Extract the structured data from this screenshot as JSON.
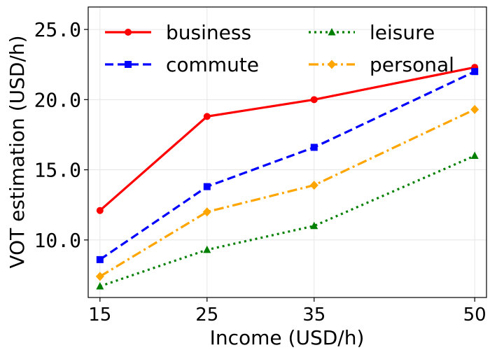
{
  "chart_data": {
    "type": "line",
    "xlabel": "Income (USD/h)",
    "ylabel": "VOT estimation (USD/h)",
    "x": [
      15,
      25,
      35,
      50
    ],
    "x_tick_labels": [
      "15",
      "25",
      "35",
      "50"
    ],
    "y_tick_labels": [
      "10.0",
      "15.0",
      "20.0",
      "25.0"
    ],
    "y_ticks": [
      10,
      15,
      20,
      25
    ],
    "xlim": [
      13.9,
      51.1
    ],
    "ylim": [
      5.9,
      26.6
    ],
    "grid": true,
    "legend_position": "top",
    "series": [
      {
        "name": "business",
        "values": [
          12.1,
          18.8,
          20.0,
          22.3
        ],
        "color": "#ff0000",
        "marker": "circle",
        "linestyle": "solid"
      },
      {
        "name": "commute",
        "values": [
          8.6,
          13.8,
          16.6,
          22.0
        ],
        "color": "#0000ff",
        "marker": "square",
        "linestyle": "dashed"
      },
      {
        "name": "leisure",
        "values": [
          6.7,
          9.3,
          11.0,
          16.0
        ],
        "color": "#008000",
        "marker": "triangle",
        "linestyle": "dotted"
      },
      {
        "name": "personal",
        "values": [
          7.4,
          12.0,
          13.9,
          19.3
        ],
        "color": "#ffa500",
        "marker": "diamond",
        "linestyle": "dashdot"
      }
    ]
  }
}
